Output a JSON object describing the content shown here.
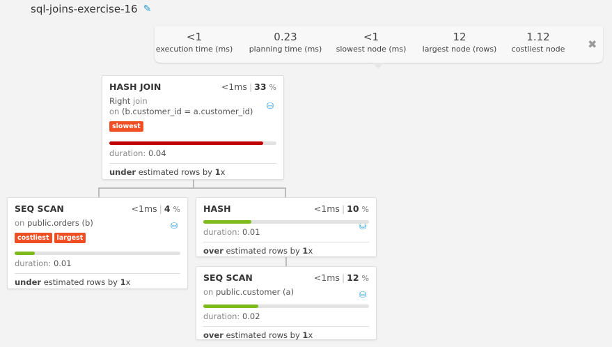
{
  "title": "sql-joins-exercise-16",
  "icons": {
    "edit": "pencil-icon",
    "close": "close-icon",
    "db": "database-icon"
  },
  "stats": [
    {
      "value": "<1",
      "label": "execution time (ms)"
    },
    {
      "value": "0.23",
      "label": "planning time (ms)"
    },
    {
      "value": "<1",
      "label": "slowest node (ms)"
    },
    {
      "value": "12",
      "label": "largest node (rows)"
    },
    {
      "value": "1.12",
      "label": "costliest node"
    }
  ],
  "colors": {
    "slowest_bar": "#c00000",
    "normal_bar": "#7cbb19",
    "badge": "#f04e23",
    "db_icon": "#2a9fd8"
  },
  "nodes": {
    "hash_join": {
      "name": "HASH JOIN",
      "time": "<1ms",
      "percent": "33",
      "pct_sign": "%",
      "line1a": "Right",
      "line1b": "join",
      "line2a": "on",
      "line2b": "(b.customer_id = a.customer_id)",
      "badges": [
        "slowest"
      ],
      "progress": 0.92,
      "dur_label": "duration:",
      "duration": "0.04",
      "est_word": "under",
      "est_text": "estimated rows by",
      "est_factor": "1",
      "est_x": "x"
    },
    "seq_orders": {
      "name": "SEQ SCAN",
      "time": "<1ms",
      "percent": "4",
      "pct_sign": "%",
      "line1a": "on",
      "line1b": "public.orders (b)",
      "badges": [
        "costliest",
        "largest"
      ],
      "progress": 0.12,
      "dur_label": "duration:",
      "duration": "0.01",
      "est_word": "under",
      "est_text": "estimated rows by",
      "est_factor": "1",
      "est_x": "x"
    },
    "hash": {
      "name": "HASH",
      "time": "<1ms",
      "percent": "10",
      "pct_sign": "%",
      "progress": 0.29,
      "dur_label": "duration:",
      "duration": "0.01",
      "est_word": "over",
      "est_text": "estimated rows by",
      "est_factor": "1",
      "est_x": "x"
    },
    "seq_customer": {
      "name": "SEQ SCAN",
      "time": "<1ms",
      "percent": "12",
      "pct_sign": "%",
      "line1a": "on",
      "line1b": "public.customer (a)",
      "progress": 0.33,
      "dur_label": "duration:",
      "duration": "0.02",
      "est_word": "over",
      "est_text": "estimated rows by",
      "est_factor": "1",
      "est_x": "x"
    }
  }
}
